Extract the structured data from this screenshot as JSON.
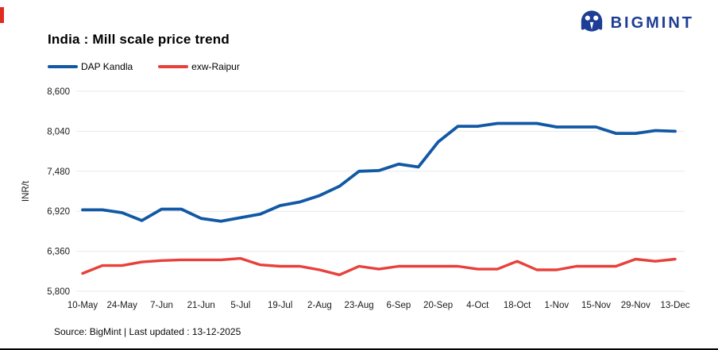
{
  "header": {
    "title": "India : Mill scale price trend",
    "logo_text": "BIGMINT",
    "logo_color": "#1d3e94",
    "accent_bar_color": "#e02b20"
  },
  "legend": [
    {
      "label": "DAP Kandla",
      "color": "#1158a5"
    },
    {
      "label": "exw-Raipur",
      "color": "#e8403a"
    }
  ],
  "chart_data": {
    "type": "line",
    "title": "India : Mill scale price trend",
    "xlabel": "",
    "ylabel": "INR/t",
    "ylim": [
      5800,
      8600
    ],
    "yticks": [
      5800,
      6360,
      6920,
      7480,
      8040,
      8600
    ],
    "ytick_labels": [
      "5,800",
      "6,360",
      "6,920",
      "7,480",
      "8,040",
      "8,600"
    ],
    "grid": "horizontal",
    "gridline_color": "#e9e9e9",
    "legend_position": "top-left",
    "categories": [
      "10-May",
      "17-May",
      "24-May",
      "31-May",
      "7-Jun",
      "14-Jun",
      "21-Jun",
      "28-Jun",
      "5-Jul",
      "12-Jul",
      "19-Jul",
      "26-Jul",
      "2-Aug",
      "16-Aug",
      "23-Aug",
      "30-Aug",
      "6-Sep",
      "13-Sep",
      "20-Sep",
      "27-Sep",
      "4-Oct",
      "11-Oct",
      "18-Oct",
      "25-Oct",
      "1-Nov",
      "8-Nov",
      "15-Nov",
      "22-Nov",
      "29-Nov",
      "6-Dec",
      "13-Dec"
    ],
    "x_tick_labels": [
      "10-May",
      "24-May",
      "7-Jun",
      "21-Jun",
      "5-Jul",
      "19-Jul",
      "2-Aug",
      "23-Aug",
      "6-Sep",
      "20-Sep",
      "4-Oct",
      "18-Oct",
      "1-Nov",
      "15-Nov",
      "29-Nov",
      "13-Dec"
    ],
    "x_tick_every": 2,
    "series": [
      {
        "name": "DAP Kandla",
        "color": "#1158a5",
        "values": [
          6940,
          6940,
          6900,
          6790,
          6950,
          6950,
          6820,
          6780,
          6830,
          6880,
          7000,
          7050,
          7140,
          7270,
          7480,
          7490,
          7580,
          7540,
          7890,
          8110,
          8110,
          8150,
          8150,
          8150,
          8100,
          8100,
          8100,
          8010,
          8010,
          8050,
          8040
        ]
      },
      {
        "name": "exw-Raipur",
        "color": "#e8403a",
        "values": [
          6050,
          6160,
          6160,
          6210,
          6230,
          6240,
          6240,
          6240,
          6260,
          6170,
          6150,
          6150,
          6100,
          6030,
          6150,
          6110,
          6150,
          6150,
          6150,
          6150,
          6110,
          6110,
          6220,
          6100,
          6100,
          6150,
          6150,
          6150,
          6250,
          6220,
          6250
        ]
      }
    ]
  },
  "footer": {
    "source": "Source: BigMint | Last updated : 13-12-2025"
  }
}
